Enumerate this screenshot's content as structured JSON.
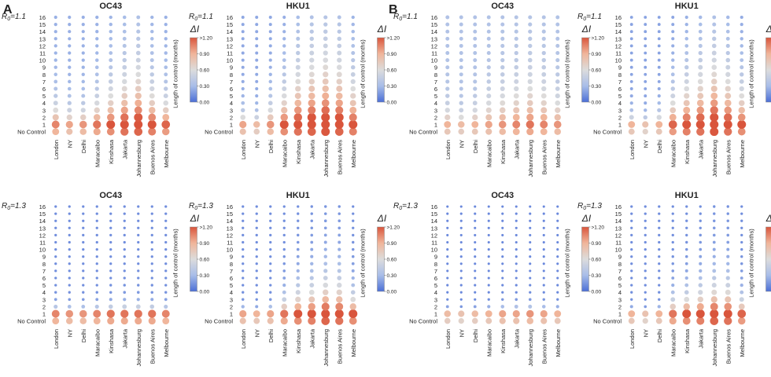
{
  "panels": [
    {
      "letter": "A",
      "title": "OC43"
    },
    {
      "letter": "B",
      "title": "HKU1"
    }
  ],
  "chart_data": {
    "type": "bubble-matrix",
    "description_axis": {
      "ylabel": "Length of control (months)",
      "y_ticks": [
        "No Control",
        "1",
        "2",
        "3",
        "4",
        "5",
        "6",
        "7",
        "8",
        "9",
        "10",
        "11",
        "12",
        "13",
        "14",
        "15",
        "16"
      ],
      "cities": [
        "London",
        "NY",
        "Delhi",
        "Maracaibo",
        "Kinshasa",
        "Jakarta",
        "Johannesburg",
        "Buenos Aires",
        "Melbourne"
      ]
    },
    "colorbar": {
      "label": "ΔI",
      "ticks": [
        "0.00",
        "0.30",
        "0.60",
        "0.90",
        ">1.20"
      ],
      "range": [
        0,
        1.2
      ],
      "colors": [
        "#4c6fd6",
        "#a8bde8",
        "#dcdcdc",
        "#f0b59a",
        "#d9553c"
      ]
    },
    "subplots": [
      {
        "group": "A",
        "virus": "OC43",
        "r0_label": "R",
        "r0_sub": "0",
        "r0_value": "=1.1",
        "city_peak": [
          1.05,
          0.95,
          1.0,
          1.1,
          1.2,
          1.3,
          1.35,
          1.25,
          1.15
        ],
        "city_decay": [
          2.5,
          2.0,
          2.0,
          3.0,
          4.0,
          5.0,
          6.0,
          4.0,
          3.0
        ],
        "floor": 0.25
      },
      {
        "group": "A",
        "virus": "HKU1",
        "r0_label": "R",
        "r0_sub": "0",
        "r0_value": "=1.1",
        "city_peak": [
          0.95,
          0.85,
          1.0,
          1.2,
          1.3,
          1.35,
          1.4,
          1.35,
          1.25
        ],
        "city_decay": [
          1.5,
          1.2,
          2.5,
          4.0,
          6.0,
          7.0,
          7.5,
          7.0,
          5.0
        ],
        "floor": 0.22
      },
      {
        "group": "A",
        "virus": "OC43",
        "r0_label": "R",
        "r0_sub": "0",
        "r0_value": "=1.3",
        "city_peak": [
          1.05,
          1.0,
          1.0,
          1.05,
          1.1,
          1.1,
          1.1,
          1.1,
          1.05
        ],
        "city_decay": [
          0.8,
          0.7,
          0.7,
          0.8,
          0.9,
          1.0,
          1.0,
          0.9,
          0.8
        ],
        "floor": 0.12
      },
      {
        "group": "A",
        "virus": "HKU1",
        "r0_label": "R",
        "r0_sub": "0",
        "r0_value": "=1.3",
        "city_peak": [
          0.95,
          0.9,
          0.95,
          1.1,
          1.2,
          1.25,
          1.35,
          1.3,
          1.2
        ],
        "city_decay": [
          0.6,
          0.5,
          0.7,
          2.0,
          3.0,
          3.5,
          4.0,
          4.0,
          2.5
        ],
        "floor": 0.12
      },
      {
        "group": "B",
        "virus": "OC43",
        "r0_label": "R",
        "r0_sub": "0",
        "r0_value": "=1.1",
        "city_peak": [
          0.9,
          0.85,
          0.9,
          0.95,
          1.0,
          1.05,
          1.1,
          1.05,
          1.0
        ],
        "city_decay": [
          2.0,
          1.5,
          2.0,
          3.0,
          3.5,
          4.0,
          4.5,
          4.0,
          3.0
        ],
        "floor": 0.35
      },
      {
        "group": "B",
        "virus": "HKU1",
        "r0_label": "R",
        "r0_sub": "0",
        "r0_value": "=1.1",
        "city_peak": [
          0.9,
          0.8,
          0.9,
          1.15,
          1.25,
          1.3,
          1.4,
          1.3,
          1.2
        ],
        "city_decay": [
          1.2,
          1.0,
          1.5,
          3.5,
          5.0,
          6.0,
          7.0,
          6.0,
          4.5
        ],
        "floor": 0.2
      },
      {
        "group": "B",
        "virus": "OC43",
        "r0_label": "R",
        "r0_sub": "0",
        "r0_value": "=1.3",
        "city_peak": [
          0.85,
          0.8,
          0.85,
          0.9,
          0.95,
          0.95,
          1.0,
          0.95,
          0.9
        ],
        "city_decay": [
          0.5,
          0.4,
          0.5,
          0.6,
          0.7,
          0.8,
          0.8,
          0.7,
          0.6
        ],
        "floor": 0.1
      },
      {
        "group": "B",
        "virus": "HKU1",
        "r0_label": "R",
        "r0_sub": "0",
        "r0_value": "=1.3",
        "city_peak": [
          0.9,
          0.8,
          0.9,
          1.1,
          1.2,
          1.25,
          1.35,
          1.3,
          1.15
        ],
        "city_decay": [
          0.5,
          0.4,
          0.6,
          2.0,
          2.5,
          3.0,
          3.5,
          3.5,
          2.0
        ],
        "floor": 0.12
      }
    ]
  }
}
